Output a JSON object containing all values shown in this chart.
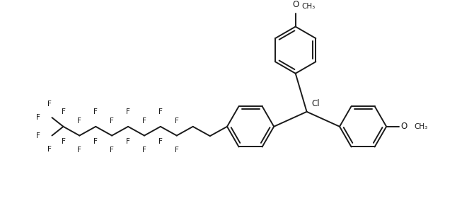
{
  "bg_color": "#ffffff",
  "line_color": "#1a1a1a",
  "line_width": 1.4,
  "font_size": 8.5,
  "fig_width": 6.7,
  "fig_height": 3.08,
  "xlim": [
    0,
    10.0
  ],
  "ylim": [
    0,
    4.6
  ]
}
